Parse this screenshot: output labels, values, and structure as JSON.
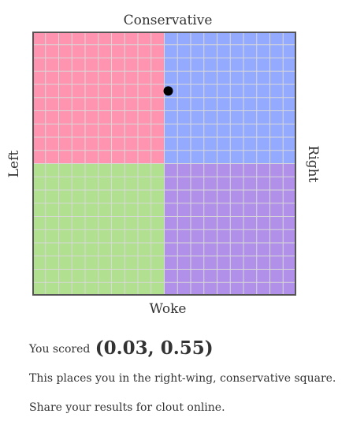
{
  "chart_data": {
    "type": "scatter",
    "axis_labels": {
      "top": "Conservative",
      "bottom": "Woke",
      "left": "Left",
      "right": "Right"
    },
    "xlim": [
      -1,
      1
    ],
    "ylim": [
      -1,
      1
    ],
    "grid": true,
    "grid_divisions": 20,
    "quadrants": {
      "top_left": "#ff94b0",
      "top_right": "#94aaff",
      "bottom_left": "#b0e090",
      "bottom_right": "#b090e8"
    },
    "point": {
      "x": 0.03,
      "y": 0.55
    },
    "point_color": "#000000",
    "grid_color": "#d8d8d8",
    "border_color": "#555555"
  },
  "result": {
    "prefix": "You scored",
    "score_text": "(0.03, 0.55)",
    "placement": "This places you in the right-wing, conservative square.",
    "share": "Share your results for clout online."
  }
}
